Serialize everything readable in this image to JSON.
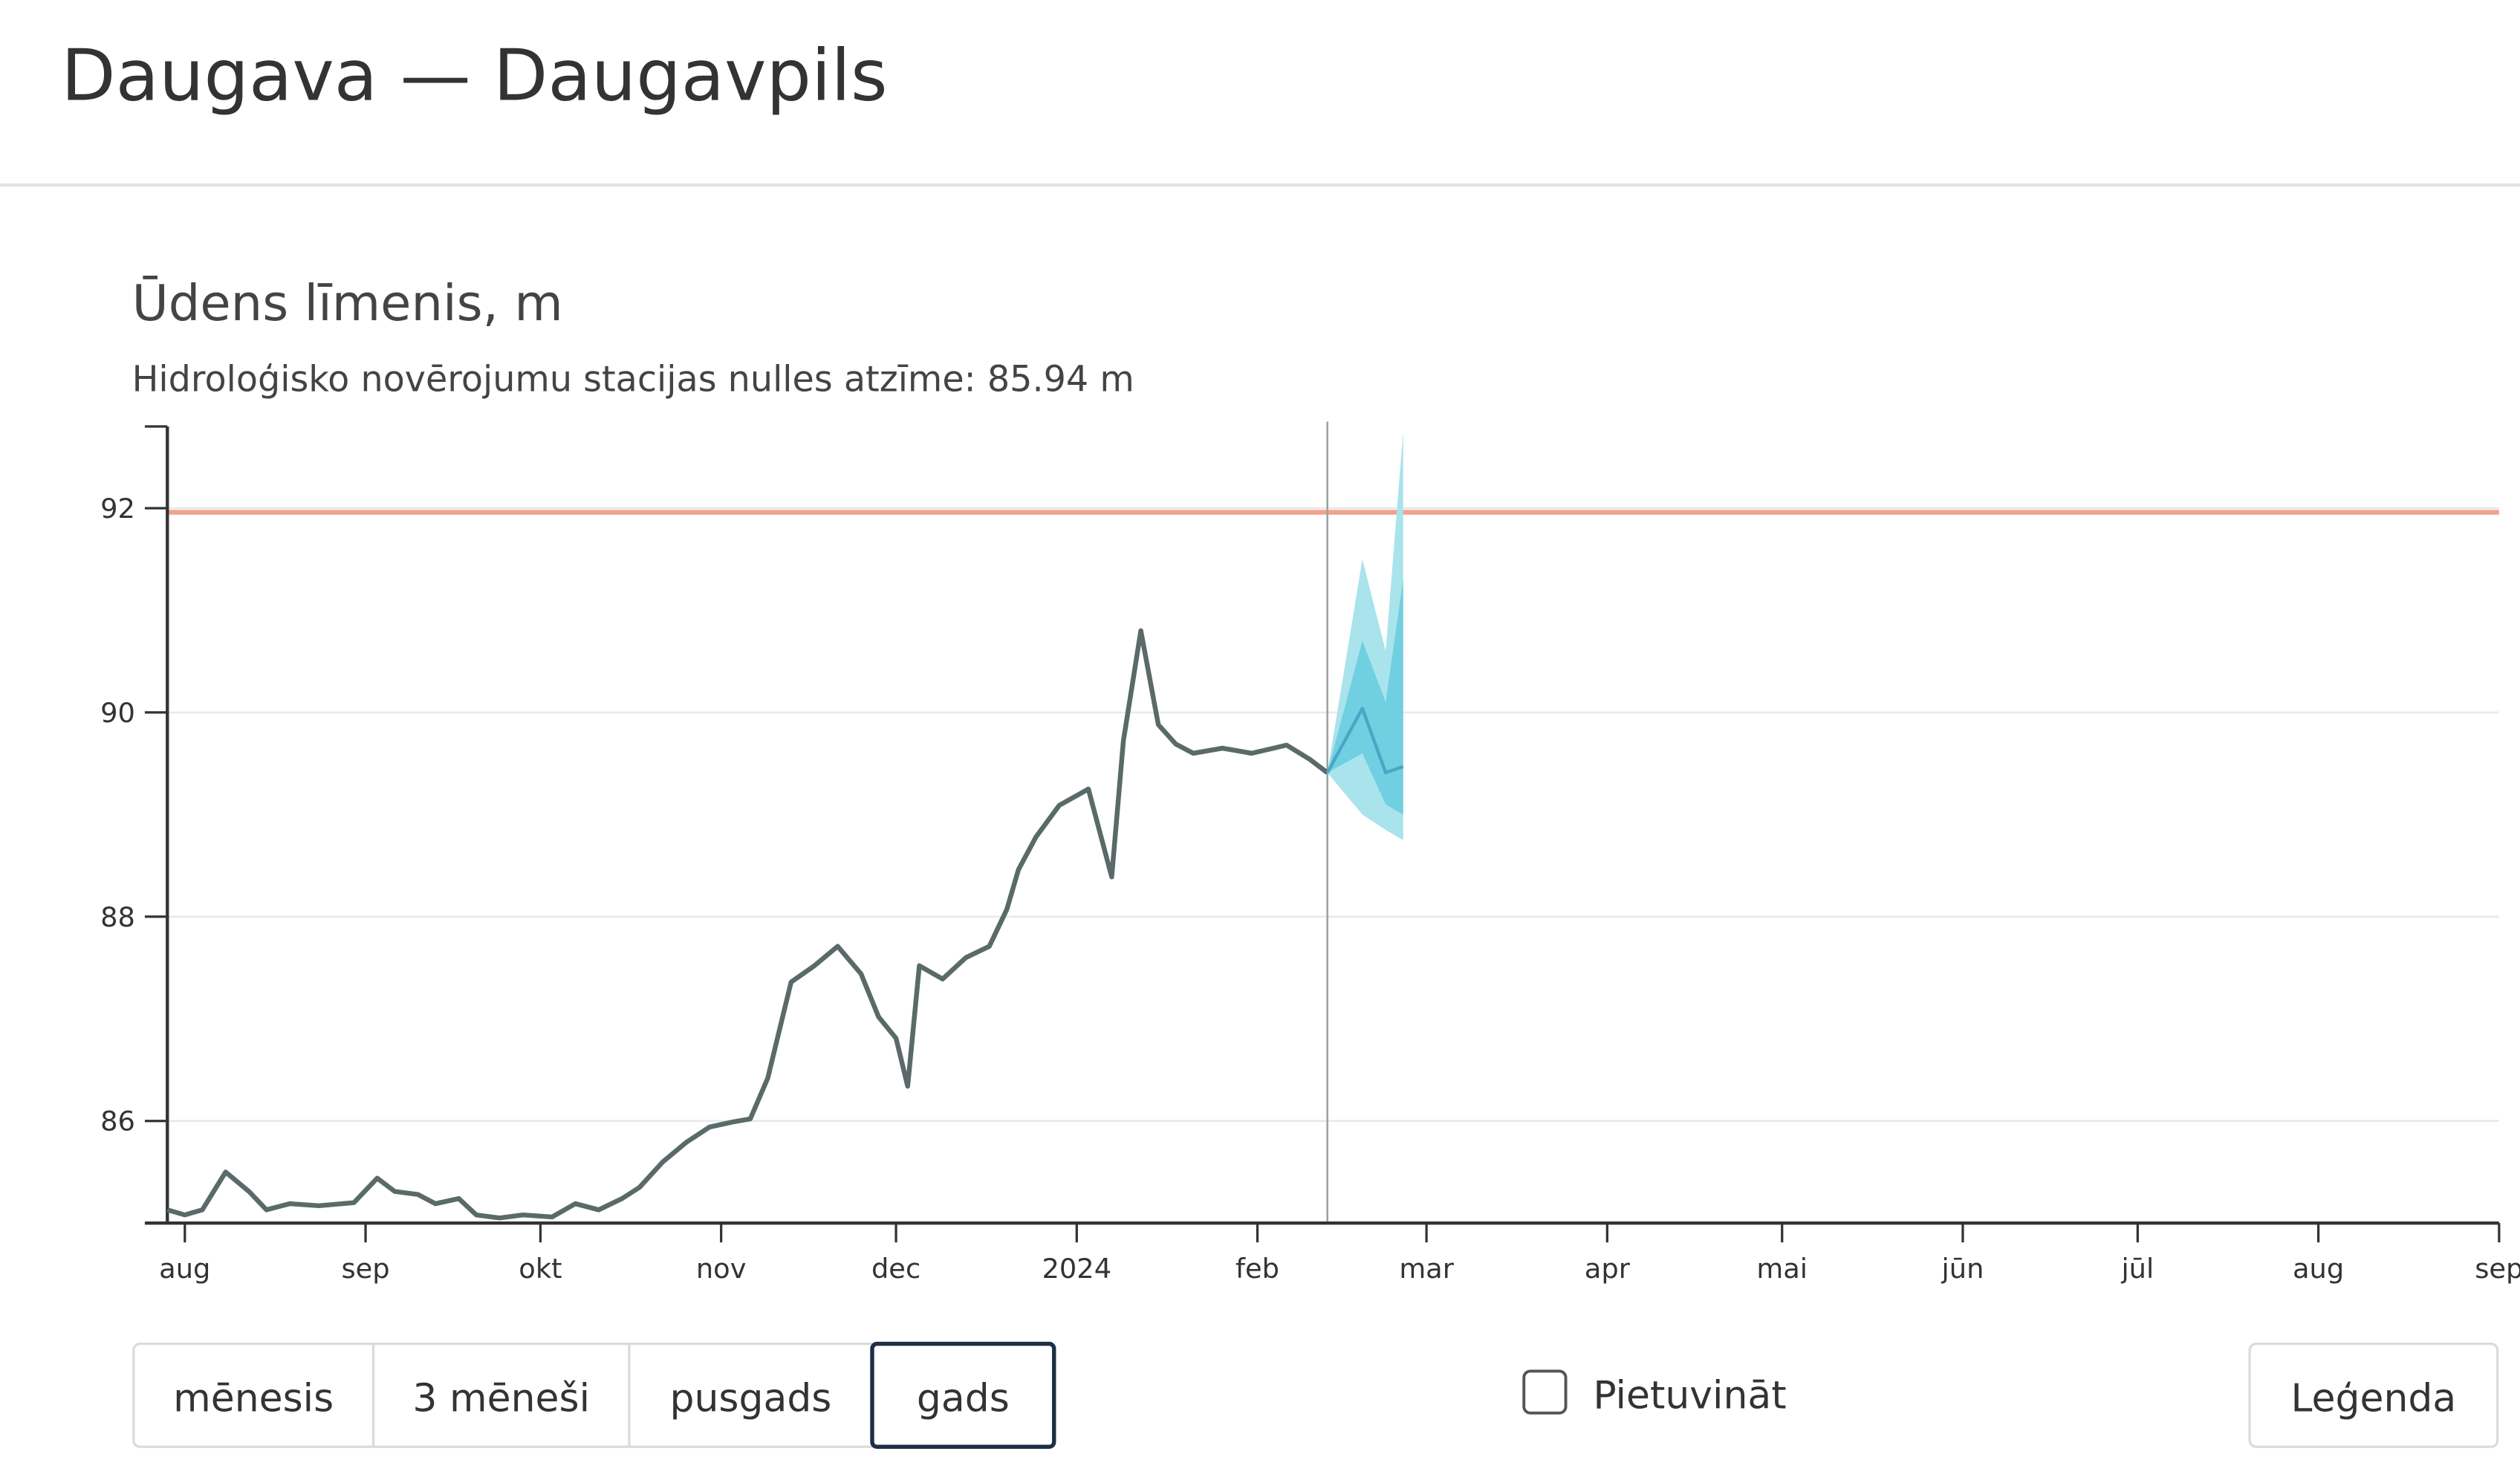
{
  "header": {
    "title": "Daugava — Daugavpils"
  },
  "chart_data": {
    "type": "line",
    "title": "Ūdens līmenis, m",
    "subtitle": "Hidroloģisko novērojumu stacijas nulles atzīme: 85.94 m",
    "xlim": [
      "2023-07-29",
      "2024-09-01"
    ],
    "ylim": [
      85,
      92.8
    ],
    "yticks": [
      86,
      88,
      90,
      92
    ],
    "xticks": [
      {
        "value": "2023-08-01",
        "label": "aug"
      },
      {
        "value": "2023-09-01",
        "label": "sep"
      },
      {
        "value": "2023-10-01",
        "label": "okt"
      },
      {
        "value": "2023-11-01",
        "label": "nov"
      },
      {
        "value": "2023-12-01",
        "label": "dec"
      },
      {
        "value": "2024-01-01",
        "label": "2024"
      },
      {
        "value": "2024-02-01",
        "label": "feb"
      },
      {
        "value": "2024-03-01",
        "label": "mar"
      },
      {
        "value": "2024-04-01",
        "label": "apr"
      },
      {
        "value": "2024-05-01",
        "label": "mai"
      },
      {
        "value": "2024-06-01",
        "label": "jūn"
      },
      {
        "value": "2024-07-01",
        "label": "jūl"
      },
      {
        "value": "2024-08-01",
        "label": "aug"
      },
      {
        "value": "2024-09-01",
        "label": "sep"
      }
    ],
    "grid": true,
    "threshold": {
      "value": 91.96,
      "color": "#f2a28e"
    },
    "now": "2024-02-13",
    "observed": {
      "color": "#596a69",
      "x": [
        "2023-07-29",
        "2023-08-01",
        "2023-08-04",
        "2023-08-08",
        "2023-08-12",
        "2023-08-15",
        "2023-08-19",
        "2023-08-24",
        "2023-08-30",
        "2023-09-03",
        "2023-09-06",
        "2023-09-10",
        "2023-09-13",
        "2023-09-17",
        "2023-09-20",
        "2023-09-24",
        "2023-09-28",
        "2023-10-03",
        "2023-10-07",
        "2023-10-11",
        "2023-10-15",
        "2023-10-18",
        "2023-10-22",
        "2023-10-26",
        "2023-10-30",
        "2023-11-03",
        "2023-11-06",
        "2023-11-09",
        "2023-11-13",
        "2023-11-17",
        "2023-11-21",
        "2023-11-25",
        "2023-11-28",
        "2023-12-01",
        "2023-12-03",
        "2023-12-05",
        "2023-12-09",
        "2023-12-13",
        "2023-12-17",
        "2023-12-20",
        "2023-12-22",
        "2023-12-25",
        "2023-12-29",
        "2024-01-03",
        "2024-01-07",
        "2024-01-09",
        "2024-01-12",
        "2024-01-15",
        "2024-01-18",
        "2024-01-21",
        "2024-01-26",
        "2024-01-31",
        "2024-02-06",
        "2024-02-10",
        "2024-02-13"
      ],
      "values": [
        85.13,
        85.08,
        85.13,
        85.5,
        85.31,
        85.13,
        85.19,
        85.17,
        85.2,
        85.44,
        85.31,
        85.28,
        85.19,
        85.24,
        85.08,
        85.05,
        85.08,
        85.06,
        85.19,
        85.13,
        85.24,
        85.35,
        85.6,
        85.79,
        85.94,
        85.99,
        86.02,
        86.42,
        87.36,
        87.52,
        87.71,
        87.44,
        87.02,
        86.81,
        86.34,
        87.52,
        87.39,
        87.6,
        87.71,
        88.07,
        88.46,
        88.78,
        89.09,
        89.25,
        88.39,
        89.72,
        90.8,
        89.88,
        89.69,
        89.6,
        89.65,
        89.6,
        89.68,
        89.54,
        89.41
      ]
    },
    "forecast": {
      "color": "#4aa6c6",
      "x": [
        "2024-02-13",
        "2024-02-19",
        "2024-02-23",
        "2024-02-26"
      ],
      "values": [
        89.41,
        90.04,
        89.41,
        89.47
      ],
      "outer_color": "#a9e3ec",
      "outer_upper": [
        89.41,
        91.5,
        90.6,
        92.75
      ],
      "outer_lower": [
        89.41,
        89.0,
        88.85,
        88.75
      ],
      "inner_color": "#70cfe0",
      "inner_upper": [
        89.41,
        90.7,
        90.1,
        91.3
      ],
      "inner_lower": [
        89.41,
        89.6,
        89.1,
        89.0
      ]
    }
  },
  "controls": {
    "periods": [
      "mēnesis",
      "3 mēneši",
      "pusgads",
      "gads"
    ],
    "selected": 3,
    "zoom": "Pietuvināt",
    "legend": "Leģenda"
  }
}
